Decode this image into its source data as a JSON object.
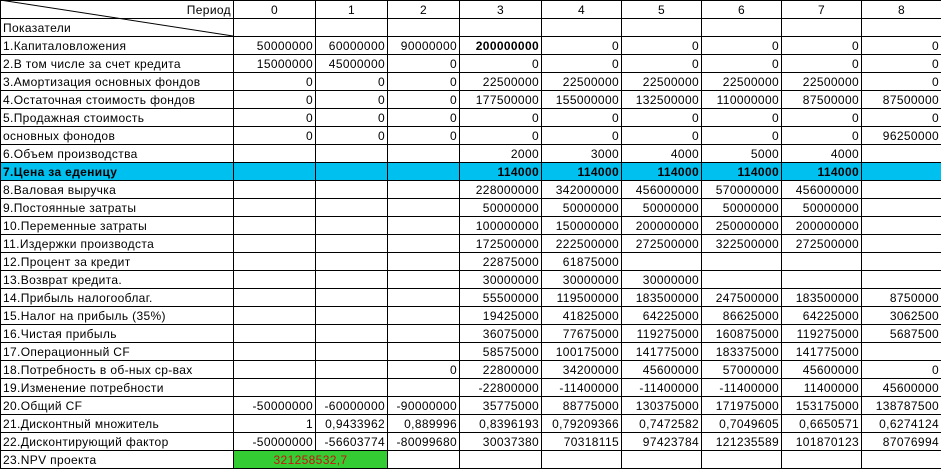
{
  "header": {
    "period_label": "Период",
    "indicators_label": "Показатели",
    "periods": [
      "0",
      "1",
      "2",
      "3",
      "4",
      "5",
      "6",
      "7",
      "8"
    ]
  },
  "rows": [
    {
      "label": "1.Капиталовложения",
      "values": [
        "50000000",
        "60000000",
        "90000000",
        "200000000",
        "0",
        "0",
        "0",
        "0",
        "0"
      ]
    },
    {
      "label": "2.В том числе за счет кредита",
      "values": [
        "15000000",
        "45000000",
        "0",
        "0",
        "0",
        "0",
        "0",
        "0",
        "0"
      ]
    },
    {
      "label": "3.Амортизация основных фондов",
      "values": [
        "0",
        "0",
        "0",
        "22500000",
        "22500000",
        "22500000",
        "22500000",
        "22500000",
        "0"
      ]
    },
    {
      "label": "4.Остаточная стоимость фондов",
      "values": [
        "0",
        "0",
        "0",
        "177500000",
        "155000000",
        "132500000",
        "110000000",
        "87500000",
        "87500000"
      ]
    },
    {
      "label": "5.Продажная стоимость",
      "values": [
        "0",
        "0",
        "0",
        "0",
        "0",
        "0",
        "0",
        "0",
        "0"
      ]
    },
    {
      "label": " основных фонодов",
      "values": [
        "0",
        "0",
        "0",
        "0",
        "0",
        "0",
        "0",
        "0",
        "96250000"
      ]
    },
    {
      "label": "6.Объем производства",
      "values": [
        "",
        "",
        "",
        "2000",
        "3000",
        "4000",
        "5000",
        "4000",
        ""
      ]
    },
    {
      "label": "7.Цена за еденицу",
      "values": [
        "",
        "",
        "",
        "114000",
        "114000",
        "114000",
        "114000",
        "114000",
        ""
      ]
    },
    {
      "label": "8.Валовая выручка",
      "values": [
        "",
        "",
        "",
        "228000000",
        "342000000",
        "456000000",
        "570000000",
        "456000000",
        ""
      ]
    },
    {
      "label": "9.Постоянные затраты",
      "values": [
        "",
        "",
        "",
        "50000000",
        "50000000",
        "50000000",
        "50000000",
        "50000000",
        ""
      ]
    },
    {
      "label": "10.Переменные затраты",
      "values": [
        "",
        "",
        "",
        "100000000",
        "150000000",
        "200000000",
        "250000000",
        "200000000",
        ""
      ]
    },
    {
      "label": "11.Издержки производста",
      "values": [
        "",
        "",
        "",
        "172500000",
        "222500000",
        "272500000",
        "322500000",
        "272500000",
        ""
      ]
    },
    {
      "label": "12.Процент за кредит",
      "values": [
        "",
        "",
        "",
        "22875000",
        "61875000",
        "",
        "",
        "",
        ""
      ]
    },
    {
      "label": "13.Возврат кредита.",
      "values": [
        "",
        "",
        "",
        "30000000",
        "30000000",
        "30000000",
        "",
        "",
        ""
      ]
    },
    {
      "label": "14.Прибыль налогооблаг.",
      "values": [
        "",
        "",
        "",
        "55500000",
        "119500000",
        "183500000",
        "247500000",
        "183500000",
        "8750000"
      ]
    },
    {
      "label": "15.Налог на прибыль (35%)",
      "values": [
        "",
        "",
        "",
        "19425000",
        "41825000",
        "64225000",
        "86625000",
        "64225000",
        "3062500"
      ]
    },
    {
      "label": "16.Чистая прибыль",
      "values": [
        "",
        "",
        "",
        "36075000",
        "77675000",
        "119275000",
        "160875000",
        "119275000",
        "5687500"
      ]
    },
    {
      "label": "17.Операционный CF",
      "values": [
        "",
        "",
        "",
        "58575000",
        "100175000",
        "141775000",
        "183375000",
        "141775000",
        ""
      ]
    },
    {
      "label": "18.Потребность в об-ных ср-вах",
      "values": [
        "",
        "",
        "0",
        "22800000",
        "34200000",
        "45600000",
        "57000000",
        "45600000",
        "0"
      ]
    },
    {
      "label": "19.Изменение потребности",
      "values": [
        "",
        "",
        "",
        "-22800000",
        "-11400000",
        "-11400000",
        "-11400000",
        "11400000",
        "45600000"
      ]
    },
    {
      "label": "20.Общий CF",
      "values": [
        "-50000000",
        "-60000000",
        "-90000000",
        "35775000",
        "88775000",
        "130375000",
        "171975000",
        "153175000",
        "138787500"
      ]
    },
    {
      "label": "21.Дисконтный множитель",
      "values": [
        "1",
        "0,9433962",
        "0,889996",
        "0,8396193",
        "0,79209366",
        "0,7472582",
        "0,7049605",
        "0,6650571",
        "0,6274124"
      ]
    },
    {
      "label": "22.Дисконтирующий фактор",
      "values": [
        "-50000000",
        "-56603774",
        "-80099680",
        "30037380",
        "70318115",
        "97423784",
        "121235589",
        "101870123",
        "87076994"
      ]
    }
  ],
  "npv": {
    "label": "23.NPV проекта",
    "value": "321258532,7"
  },
  "colors": {
    "price_row_bg": "#00c0f0",
    "npv_bg": "#33cc33",
    "npv_text": "#cc1111"
  }
}
